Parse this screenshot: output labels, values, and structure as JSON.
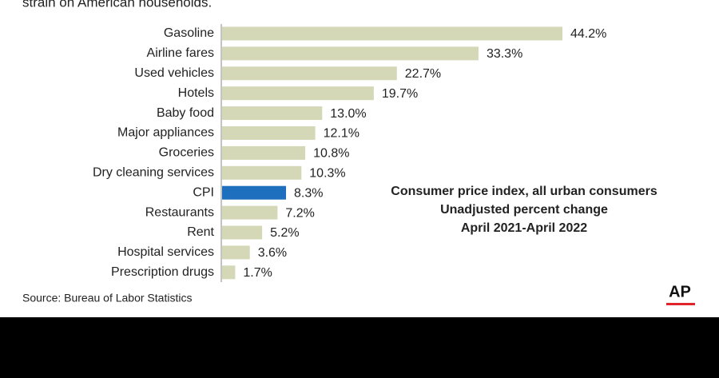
{
  "chart_data": {
    "type": "bar",
    "orientation": "horizontal",
    "subtitle": "strain on American households.",
    "categories": [
      "Gasoline",
      "Airline fares",
      "Used vehicles",
      "Hotels",
      "Baby food",
      "Major appliances",
      "Groceries",
      "Dry cleaning services",
      "CPI",
      "Restaurants",
      "Rent",
      "Hospital services",
      "Prescription drugs"
    ],
    "values": [
      44.2,
      33.3,
      22.7,
      19.7,
      13.0,
      12.1,
      10.8,
      10.3,
      8.3,
      7.2,
      5.2,
      3.6,
      1.7
    ],
    "value_labels": [
      "44.2%",
      "33.3%",
      "22.7%",
      "19.7%",
      "13.0%",
      "12.1%",
      "10.8%",
      "10.3%",
      "8.3%",
      "7.2%",
      "5.2%",
      "3.6%",
      "1.7%"
    ],
    "colors": [
      "#d4d8b6",
      "#d4d8b6",
      "#d4d8b6",
      "#d4d8b6",
      "#d4d8b6",
      "#d4d8b6",
      "#d4d8b6",
      "#d4d8b6",
      "#1f6fbf",
      "#d4d8b6",
      "#d4d8b6",
      "#d4d8b6",
      "#d4d8b6"
    ],
    "annotation": [
      "Consumer price index, all urban consumers",
      "Unadjusted percent change",
      "April 2021-April 2022"
    ],
    "source": "Source: Bureau of Labor Statistics",
    "logo": "AP"
  }
}
